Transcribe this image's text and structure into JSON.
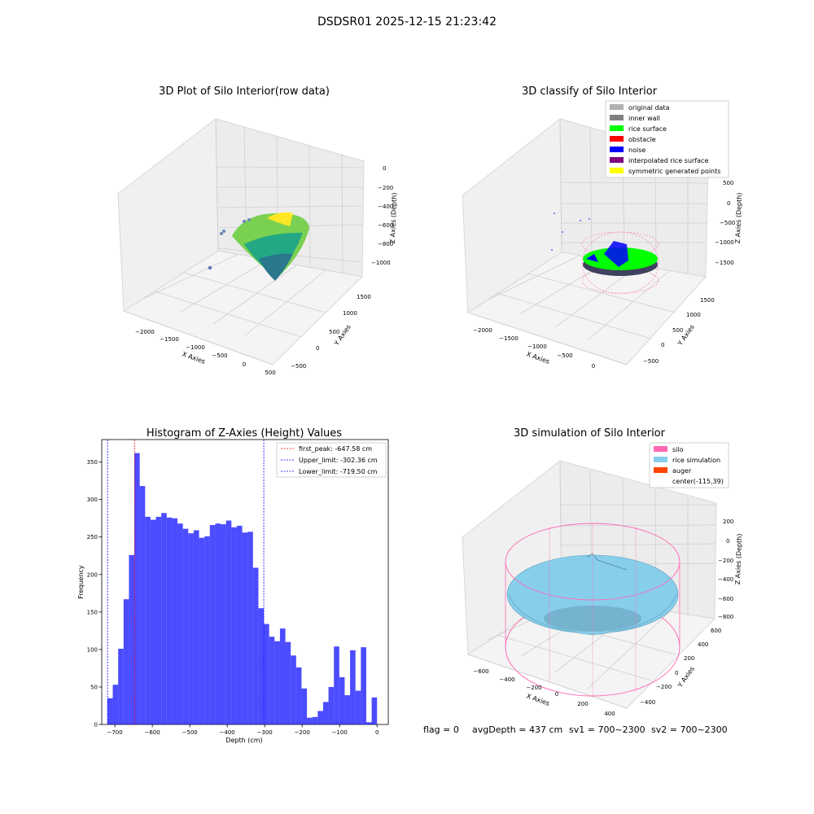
{
  "figure_title": "DSDSR01 2025-12-15 21:23:42",
  "status_line": {
    "flag": "flag = 0",
    "avg_depth": "avgDepth = 437 cm",
    "sv1": "sv1 = 700~2300",
    "sv2": "sv2 = 700~2300"
  },
  "chart_data": [
    {
      "type": "scatter",
      "title": "3D Plot of Silo Interior(row data)",
      "xlabel": "X Axies",
      "ylabel": "Y Axies",
      "zlabel": "Z Axies (Depth)",
      "x_ticks": [
        "−2000",
        "−1500",
        "−1000",
        "−500",
        "0",
        "500"
      ],
      "y_ticks": [
        "−500",
        "0",
        "500",
        "1000",
        "1500"
      ],
      "z_ticks": [
        "0",
        "−200",
        "−400",
        "−600",
        "−800",
        "−1000"
      ],
      "colormap": [
        "#440154",
        "#2a788e",
        "#22a884",
        "#7ad151",
        "#fde725"
      ],
      "grid": true
    },
    {
      "type": "scatter",
      "title": "3D classify of Silo Interior",
      "xlabel": "X Axies",
      "ylabel": "Y Axies",
      "zlabel": "Z Axies (Depth)",
      "x_ticks": [
        "−2000",
        "−1500",
        "−1000",
        "−500",
        "0"
      ],
      "y_ticks": [
        "−500",
        "0",
        "500",
        "1000",
        "1500"
      ],
      "z_ticks": [
        "500",
        "0",
        "−500",
        "−1000",
        "−1500"
      ],
      "legend_position": "top-right",
      "legend": [
        {
          "label": "original data",
          "color": "#b0b0b0"
        },
        {
          "label": "inner wall",
          "color": "#808080"
        },
        {
          "label": "rice surface",
          "color": "#00ff00"
        },
        {
          "label": "obstacle",
          "color": "#ff0000"
        },
        {
          "label": "noise",
          "color": "#0000ff"
        },
        {
          "label": "interpolated rice surface",
          "color": "#800080"
        },
        {
          "label": "symmetric generated points",
          "color": "#ffff00"
        }
      ],
      "grid": true
    },
    {
      "type": "bar",
      "title": "Histogram of Z-Axies (Height) Values",
      "xlabel": "Depth (cm)",
      "ylabel": "Frequency",
      "xlim": [
        -735,
        30
      ],
      "ylim": [
        0,
        380
      ],
      "x_ticks": [
        -700,
        -600,
        -500,
        -400,
        -300,
        -200,
        -100,
        0
      ],
      "x_tick_labels": [
        "−700",
        "−600",
        "−500",
        "−400",
        "−300",
        "−200",
        "−100",
        "0"
      ],
      "y_ticks": [
        0,
        50,
        100,
        150,
        200,
        250,
        300,
        350
      ],
      "bin_start": -720,
      "bin_width": 14.4,
      "values": [
        35,
        53,
        101,
        167,
        226,
        362,
        318,
        277,
        273,
        277,
        282,
        276,
        275,
        268,
        261,
        255,
        259,
        249,
        251,
        266,
        268,
        267,
        272,
        263,
        265,
        256,
        257,
        209,
        155,
        134,
        117,
        111,
        128,
        110,
        92,
        76,
        48,
        9,
        10,
        18,
        30,
        50,
        104,
        63,
        39,
        99,
        45,
        103,
        3,
        36
      ],
      "bar_color": "#0000ff",
      "bar_opacity": 0.7,
      "legend_position": "top-right",
      "reference_lines": [
        {
          "label": "first_peak: -647.58 cm",
          "x": -647.58,
          "color": "#ff0000"
        },
        {
          "label": "Upper_limit: -302.36 cm",
          "x": -302.36,
          "color": "#0000ff"
        },
        {
          "label": "Lower_limit: -719.50 cm",
          "x": -719.5,
          "color": "#0000ff"
        }
      ]
    },
    {
      "type": "scatter",
      "title": "3D simulation of Silo Interior",
      "xlabel": "X Axies",
      "ylabel": "Y Axies",
      "zlabel": "Z Axies (Depth)",
      "x_ticks": [
        "−600",
        "−400",
        "−200",
        "0",
        "200",
        "400"
      ],
      "y_ticks": [
        "−400",
        "−200",
        "0",
        "200",
        "400",
        "600"
      ],
      "z_ticks": [
        "200",
        "0",
        "−200",
        "−400",
        "−600",
        "−800"
      ],
      "legend_position": "top-right",
      "legend": [
        {
          "label": "silo",
          "color": "#ff69b4"
        },
        {
          "label": "rice simulation",
          "color": "#87ceeb"
        },
        {
          "label": "auger",
          "color": "#ff4500"
        },
        {
          "label": "center(-115,39)",
          "color": ""
        }
      ],
      "grid": true
    }
  ]
}
